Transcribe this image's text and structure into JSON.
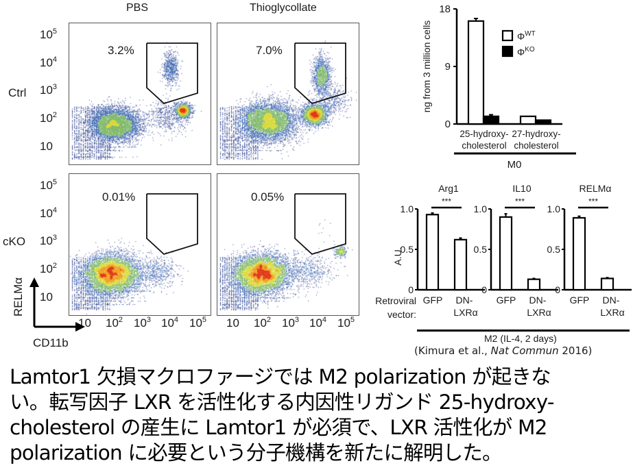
{
  "flow_panel": {
    "column_titles": [
      "PBS",
      "Thioglycollate"
    ],
    "row_labels": [
      "Ctrl",
      "cKO"
    ],
    "y_axis_label": "RELMα",
    "x_axis_label": "CD11b",
    "y_tick_labels": [
      {
        "base": "10",
        "exp": "5"
      },
      {
        "base": "10",
        "exp": "4"
      },
      {
        "base": "10",
        "exp": "3"
      },
      {
        "base": "10",
        "exp": "2"
      },
      {
        "base": "10",
        "exp": ""
      }
    ],
    "x_tick_labels": [
      {
        "base": "10",
        "exp": ""
      },
      {
        "base": "10",
        "exp": "2"
      },
      {
        "base": "10",
        "exp": "3"
      },
      {
        "base": "10",
        "exp": "4"
      },
      {
        "base": "10",
        "exp": "5"
      }
    ],
    "gate_percentages": {
      "ctrl_pbs": "3.2%",
      "ctrl_thio": "7.0%",
      "cko_pbs": "0.01%",
      "cko_thio": "0.05%"
    },
    "density_colors": [
      "#2a3f8f",
      "#3a64b0",
      "#7fb86a",
      "#d8d83a",
      "#f0a020",
      "#e03a1a"
    ]
  },
  "chart_data": [
    {
      "type": "bar",
      "title": "",
      "ylabel": "ng from 3 million cells",
      "xlabel": "M0",
      "ylim": [
        0,
        18
      ],
      "yticks": [
        "0",
        "9",
        "18"
      ],
      "categories": [
        "25-hydroxy-\ncholesterol",
        "27-hydroxy-\ncholesterol"
      ],
      "category_lines": [
        [
          "25-hydroxy-",
          "cholesterol"
        ],
        [
          "27-hydroxy-",
          "cholesterol"
        ]
      ],
      "series": [
        {
          "name": "Φ",
          "sup": "WT",
          "fill": "#ffffff",
          "values": [
            16.1,
            1.2
          ],
          "errors": [
            0.4,
            0
          ]
        },
        {
          "name": "Φ",
          "sup": "KO",
          "fill": "#000000",
          "values": [
            1.2,
            0.6
          ],
          "errors": [
            0.25,
            0
          ]
        }
      ],
      "legend": "top-right"
    },
    {
      "type": "bar",
      "title": "Arg1",
      "ylabel": "A.U.",
      "ylim": [
        0,
        1.0
      ],
      "yticks": [
        "0",
        "0.5",
        "1.0"
      ],
      "categories": [
        "GFP",
        "DN-LXRα"
      ],
      "values": [
        0.93,
        0.62
      ],
      "errors": [
        0.02,
        0.02
      ],
      "significance": "***"
    },
    {
      "type": "bar",
      "title": "IL10",
      "ylabel": "",
      "ylim": [
        0,
        1.0
      ],
      "yticks": [
        "0",
        "0.5",
        "1.0"
      ],
      "categories": [
        "GFP",
        "DN-LXRα"
      ],
      "values": [
        0.9,
        0.13
      ],
      "errors": [
        0.04,
        0.01
      ],
      "significance": "***"
    },
    {
      "type": "bar",
      "title": "RELMα",
      "ylabel": "",
      "ylim": [
        0,
        1.0
      ],
      "yticks": [
        "0",
        "0.5",
        "1.0"
      ],
      "categories": [
        "GFP",
        "DN-LXRα"
      ],
      "values": [
        0.89,
        0.14
      ],
      "errors": [
        0.02,
        0.01
      ],
      "significance": "***"
    }
  ],
  "m2_panel": {
    "row_label_lines": [
      "Retroviral",
      "vector:"
    ],
    "group_label": "M2 (IL-4, 2 days)",
    "cat_lines": [
      [
        "GFP"
      ],
      [
        "DN-",
        "LXRα"
      ]
    ]
  },
  "citation": {
    "prefix": "(Kimura et al., ",
    "journal": "Nat Commun",
    "suffix": " 2016)"
  },
  "caption": {
    "lines": [
      "Lamtor1 欠損マクロファージでは M2 polarization が起きな",
      "い。転写因子 LXR を活性化する内因性リガンド 25-hydroxy-",
      "cholesterol の産生に Lamtor1 が必須で、LXR 活性化が M2",
      "polarization に必要という分子機構を新たに解明した。"
    ]
  }
}
